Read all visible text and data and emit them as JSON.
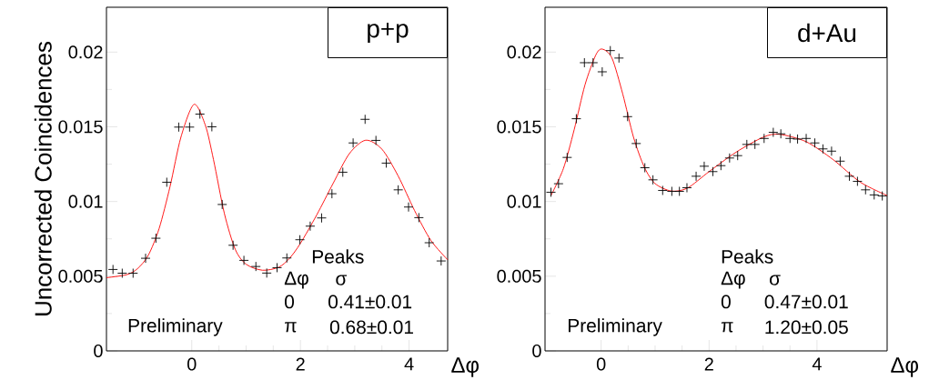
{
  "chart_data": [
    {
      "type": "scatter",
      "title": "p+p",
      "xlabel": "Δφ",
      "ylabel": "Uncorrected Coincidences",
      "xlim": [
        -1.57,
        4.71
      ],
      "ylim": [
        0,
        0.023
      ],
      "xticks": [
        0,
        2,
        4
      ],
      "yticks": [
        0,
        0.005,
        0.01,
        0.015,
        0.02
      ],
      "series": [
        {
          "type": "scatter",
          "color": "#000000",
          "marker": "cross",
          "x": [
            -1.45,
            -1.28,
            -1.08,
            -0.85,
            -0.66,
            -0.46,
            -0.24,
            -0.04,
            0.15,
            0.37,
            0.56,
            0.76,
            0.96,
            1.18,
            1.38,
            1.57,
            1.75,
            1.99,
            2.18,
            2.39,
            2.58,
            2.78,
            2.97,
            3.19,
            3.39,
            3.58,
            3.8,
            3.99,
            4.18,
            4.37,
            4.59
          ],
          "values": [
            0.00545,
            0.0052,
            0.0052,
            0.0062,
            0.00754,
            0.01129,
            0.01498,
            0.01498,
            0.01585,
            0.015,
            0.0098,
            0.00707,
            0.00606,
            0.00565,
            0.00521,
            0.00557,
            0.00622,
            0.00744,
            0.00835,
            0.0089,
            0.01052,
            0.01196,
            0.01392,
            0.0155,
            0.01409,
            0.01257,
            0.01078,
            0.00963,
            0.00892,
            0.00724,
            0.00602
          ]
        },
        {
          "type": "line",
          "color": "#ff0000",
          "marker": "none",
          "x": [
            -1.57,
            -1.2,
            -1.0,
            -0.8,
            -0.6,
            -0.4,
            -0.2,
            0.04,
            0.25,
            0.4,
            0.6,
            0.8,
            1.0,
            1.3,
            1.6,
            1.8,
            2.0,
            2.3,
            2.6,
            2.9,
            3.2,
            3.5,
            3.8,
            4.1,
            4.4,
            4.71
          ],
          "values": [
            0.0049,
            0.0051,
            0.0055,
            0.0064,
            0.0082,
            0.011,
            0.0143,
            0.0165,
            0.0151,
            0.0128,
            0.0092,
            0.0068,
            0.0058,
            0.0054,
            0.0056,
            0.0062,
            0.0072,
            0.0091,
            0.0112,
            0.0132,
            0.0141,
            0.0135,
            0.0117,
            0.0094,
            0.0074,
            0.0061
          ]
        }
      ],
      "annotations": [
        "Peaks",
        "Δφ",
        "σ",
        "0",
        "0.41±0.01",
        "π",
        "0.68±0.01",
        "Preliminary"
      ]
    },
    {
      "type": "scatter",
      "title": "d+Au",
      "xlabel": "Δφ",
      "xlim": [
        -1.04,
        5.3
      ],
      "ylim": [
        0,
        0.023
      ],
      "xticks": [
        0,
        2,
        4
      ],
      "yticks": [
        0,
        0.005,
        0.01,
        0.015,
        0.02
      ],
      "series": [
        {
          "type": "scatter",
          "color": "#000000",
          "marker": "cross",
          "x": [
            -0.93,
            -0.79,
            -0.63,
            -0.46,
            -0.31,
            -0.15,
            0.02,
            0.17,
            0.33,
            0.49,
            0.65,
            0.81,
            0.96,
            1.14,
            1.31,
            1.45,
            1.59,
            1.76,
            1.91,
            2.07,
            2.22,
            2.38,
            2.53,
            2.7,
            2.85,
            3.02,
            3.19,
            3.33,
            3.5,
            3.64,
            3.8,
            3.96,
            4.11,
            4.27,
            4.43,
            4.6,
            4.75,
            4.9,
            5.06,
            5.21
          ],
          "values": [
            0.01062,
            0.01119,
            0.01295,
            0.01554,
            0.01929,
            0.01929,
            0.01868,
            0.0201,
            0.0196,
            0.01568,
            0.01388,
            0.01226,
            0.01145,
            0.01074,
            0.01068,
            0.01068,
            0.01092,
            0.01169,
            0.01236,
            0.012,
            0.0124,
            0.01291,
            0.01307,
            0.01382,
            0.01382,
            0.01422,
            0.01463,
            0.01453,
            0.01422,
            0.01418,
            0.01422,
            0.01392,
            0.01352,
            0.01337,
            0.0127,
            0.01169,
            0.01135,
            0.01078,
            0.01044,
            0.01037
          ]
        },
        {
          "type": "line",
          "color": "#ff0000",
          "marker": "none",
          "x": [
            -0.93,
            -0.7,
            -0.5,
            -0.3,
            -0.1,
            0.02,
            0.2,
            0.4,
            0.6,
            0.8,
            1.0,
            1.3,
            1.6,
            2.0,
            2.5,
            3.0,
            3.3,
            3.8,
            4.3,
            4.8,
            5.3
          ],
          "values": [
            0.0104,
            0.0122,
            0.0148,
            0.0178,
            0.0198,
            0.0202,
            0.0196,
            0.0172,
            0.0143,
            0.0123,
            0.0112,
            0.0107,
            0.0109,
            0.012,
            0.0133,
            0.0143,
            0.0145,
            0.014,
            0.0128,
            0.0113,
            0.0104
          ]
        }
      ],
      "annotations": [
        "Peaks",
        "Δφ",
        "σ",
        "0",
        "0.47±0.01",
        "π",
        "1.20±0.05",
        "Preliminary"
      ]
    }
  ]
}
